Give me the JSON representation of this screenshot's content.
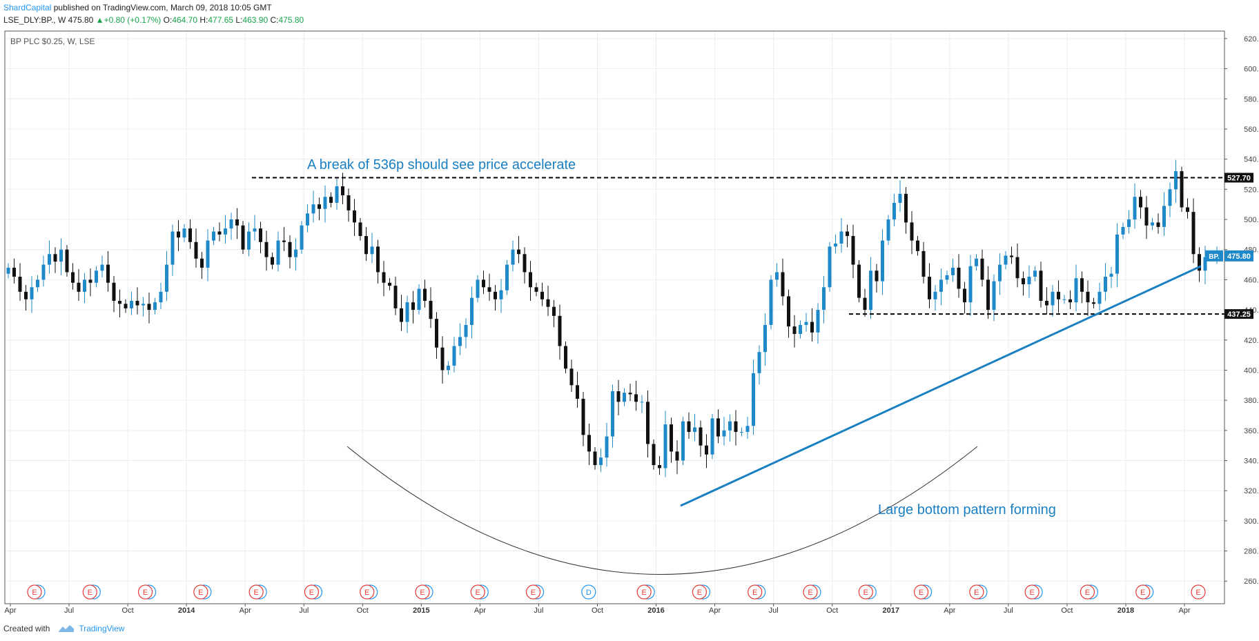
{
  "header": {
    "author": "ShardCapital",
    "published": "published on TradingView.com, March 09, 2018 10:05 GMT",
    "symbol": "LSE_DLY:BP., W",
    "last": "475.80",
    "change": "+0.80 (+0.17%)",
    "open_label": "O:",
    "open": "464.70",
    "high_label": "H:",
    "high": "477.65",
    "low_label": "L:",
    "low": "463.90",
    "close_label": "C:",
    "close": "475.80"
  },
  "footer": {
    "created_with": "Created with",
    "brand": "TradingView"
  },
  "colors": {
    "up": "#1e88c8",
    "down": "#111111",
    "trendline": "#1a7fc1",
    "annotation": "#1a7fc1",
    "grid": "#e9edf2"
  },
  "chart_data": {
    "type": "candlestick",
    "title": "BP PLC $0.25, W, LSE",
    "ylim": [
      245,
      625
    ],
    "y_ticks": [
      260,
      280,
      300,
      320,
      340,
      360,
      380,
      400,
      420,
      440,
      460,
      480,
      500,
      520,
      540,
      560,
      580,
      600,
      620
    ],
    "x_labels": [
      "Apr",
      "Jul",
      "Oct",
      "2014",
      "Apr",
      "Jul",
      "Oct",
      "2015",
      "Apr",
      "Jul",
      "Oct",
      "2016",
      "Apr",
      "Jul",
      "Oct",
      "2017",
      "Apr",
      "Jul",
      "Oct",
      "2018",
      "Apr"
    ],
    "bold_x_labels": [
      "2014",
      "2015",
      "2016",
      "2017",
      "2018"
    ],
    "close_series": [
      468,
      462,
      452,
      447,
      455,
      460,
      470,
      477,
      472,
      480,
      465,
      458,
      452,
      460,
      458,
      466,
      470,
      458,
      446,
      444,
      441,
      446,
      443,
      444,
      440,
      445,
      452,
      470,
      492,
      488,
      494,
      485,
      474,
      468,
      486,
      492,
      490,
      494,
      500,
      496,
      480,
      492,
      494,
      485,
      475,
      470,
      486,
      485,
      475,
      480,
      496,
      504,
      510,
      507,
      515,
      511,
      522,
      516,
      506,
      498,
      489,
      477,
      482,
      465,
      458,
      456,
      441,
      432,
      445,
      440,
      454,
      446,
      434,
      415,
      400,
      403,
      416,
      422,
      430,
      448,
      460,
      455,
      452,
      447,
      453,
      470,
      480,
      477,
      465,
      455,
      452,
      447,
      442,
      436,
      416,
      401,
      390,
      381,
      357,
      346,
      337,
      342,
      356,
      386,
      379,
      385,
      384,
      379,
      379,
      351,
      337,
      335,
      364,
      346,
      340,
      366,
      359,
      362,
      350,
      344,
      368,
      356,
      360,
      366,
      359,
      359,
      363,
      398,
      412,
      430,
      460,
      465,
      449,
      429,
      424,
      430,
      432,
      425,
      440,
      455,
      482,
      484,
      492,
      489,
      470,
      448,
      440,
      466,
      459,
      486,
      500,
      511,
      517,
      498,
      486,
      479,
      462,
      447,
      452,
      460,
      463,
      468,
      454,
      445,
      469,
      474,
      460,
      440,
      459,
      470,
      476,
      475,
      461,
      457,
      462,
      466,
      446,
      443,
      452,
      447,
      447,
      445,
      461,
      452,
      445,
      444,
      452,
      462,
      464,
      490,
      495,
      500,
      515,
      508,
      496,
      498,
      495,
      509,
      520,
      532,
      508,
      505,
      477,
      466,
      475,
      475,
      476
    ],
    "last_price": 475.8,
    "series_tag": "BP.",
    "price_tags": [
      {
        "label": "527.70",
        "value": 527.7
      },
      {
        "label": "437.25",
        "value": 437.25
      }
    ],
    "annotations": [
      {
        "text": "A break of 536p should see price accelerate"
      },
      {
        "text": "Large bottom pattern forming"
      }
    ],
    "event_markers": [
      "E",
      "E",
      "E",
      "E",
      "E",
      "E",
      "E",
      "E",
      "E",
      "E",
      "D",
      "E",
      "E",
      "E",
      "E",
      "E",
      "E",
      "E",
      "E",
      "E",
      "E",
      "E"
    ]
  }
}
